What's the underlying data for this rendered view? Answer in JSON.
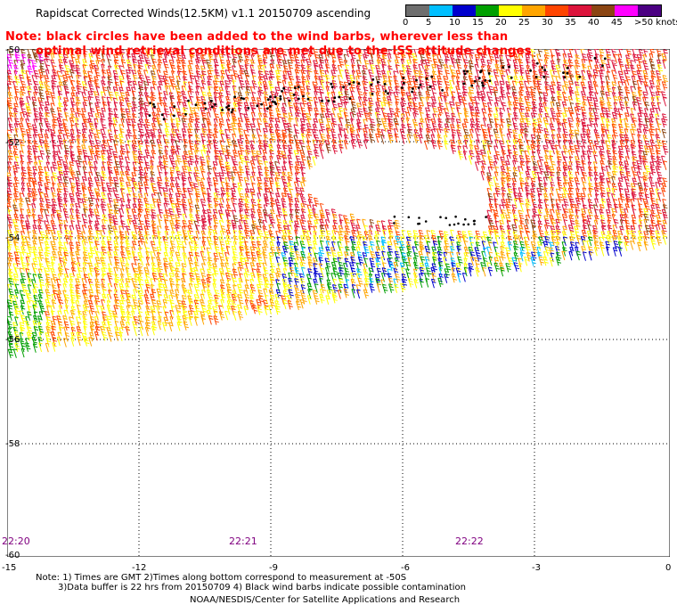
{
  "header": {
    "title": "Rapidscat Corrected Winds(12.5KM) v1.1 20150709 ascending",
    "note_line1": "Note: black circles have been added to the wind barbs, wherever less than",
    "note_line2": "optimal wind retrieval conditions are met due to the ISS attitude changes"
  },
  "legend": {
    "labels": [
      "0",
      "5",
      "10",
      "15",
      "20",
      "25",
      "30",
      "35",
      "40",
      "45",
      ">50 knots"
    ],
    "colors": [
      "#6e6e6e",
      "#00bfff",
      "#0000cd",
      "#00a000",
      "#ffff00",
      "#ffa500",
      "#ff4500",
      "#dc143c",
      "#8b4513",
      "#ff00ff",
      "#4b0082"
    ]
  },
  "axes": {
    "lat_labels": [
      "-50",
      "-52",
      "-54",
      "-56",
      "-58",
      "-60"
    ],
    "lon_labels": [
      "-15",
      "-12",
      "-9",
      "-6",
      "-3",
      "0"
    ],
    "time_labels": [
      "22:20",
      "22:21",
      "22:22"
    ]
  },
  "footer": {
    "line1": "Note: 1) Times are GMT 2)Times along bottom correspond to measurement at -50S",
    "line2": "3)Data buffer is 22 hrs from 20150709 4) Black wind barbs indicate possible contamination",
    "line3": "NOAA/NESDIS/Center for Satellite Applications and Research"
  }
}
